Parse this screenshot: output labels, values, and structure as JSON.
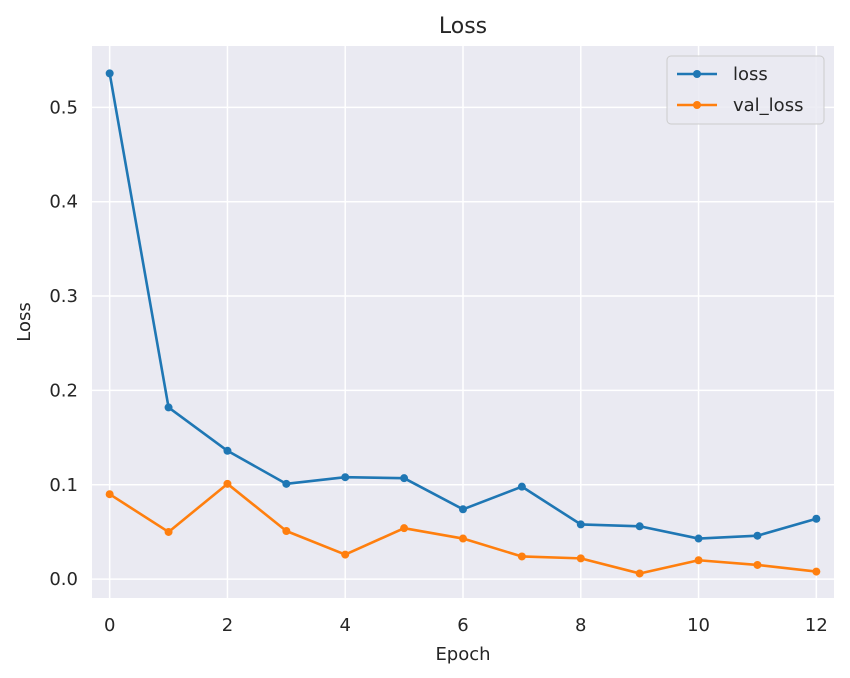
{
  "chart_data": {
    "type": "line",
    "title": "Loss",
    "xlabel": "Epoch",
    "ylabel": "Loss",
    "x": [
      0,
      1,
      2,
      3,
      4,
      5,
      6,
      7,
      8,
      9,
      10,
      11,
      12
    ],
    "series": [
      {
        "name": "loss",
        "color": "#1f77b4",
        "values": [
          0.536,
          0.182,
          0.136,
          0.101,
          0.108,
          0.107,
          0.074,
          0.098,
          0.058,
          0.056,
          0.043,
          0.046,
          0.064
        ]
      },
      {
        "name": "val_loss",
        "color": "#ff7f0e",
        "values": [
          0.09,
          0.05,
          0.101,
          0.051,
          0.026,
          0.054,
          0.043,
          0.024,
          0.022,
          0.006,
          0.02,
          0.015,
          0.008
        ]
      }
    ],
    "xlim": [
      -0.3,
      12.3
    ],
    "ylim": [
      -0.02,
      0.565
    ],
    "xticks": [
      0,
      2,
      4,
      6,
      8,
      10,
      12
    ],
    "yticks": [
      0.0,
      0.1,
      0.2,
      0.3,
      0.4,
      0.5
    ],
    "xtick_labels": [
      "0",
      "2",
      "4",
      "6",
      "8",
      "10",
      "12"
    ],
    "ytick_labels": [
      "0.0",
      "0.1",
      "0.2",
      "0.3",
      "0.4",
      "0.5"
    ],
    "grid": true,
    "legend_position": "top-right",
    "background_color": "#eaeaf2",
    "grid_color": "#ffffff"
  }
}
